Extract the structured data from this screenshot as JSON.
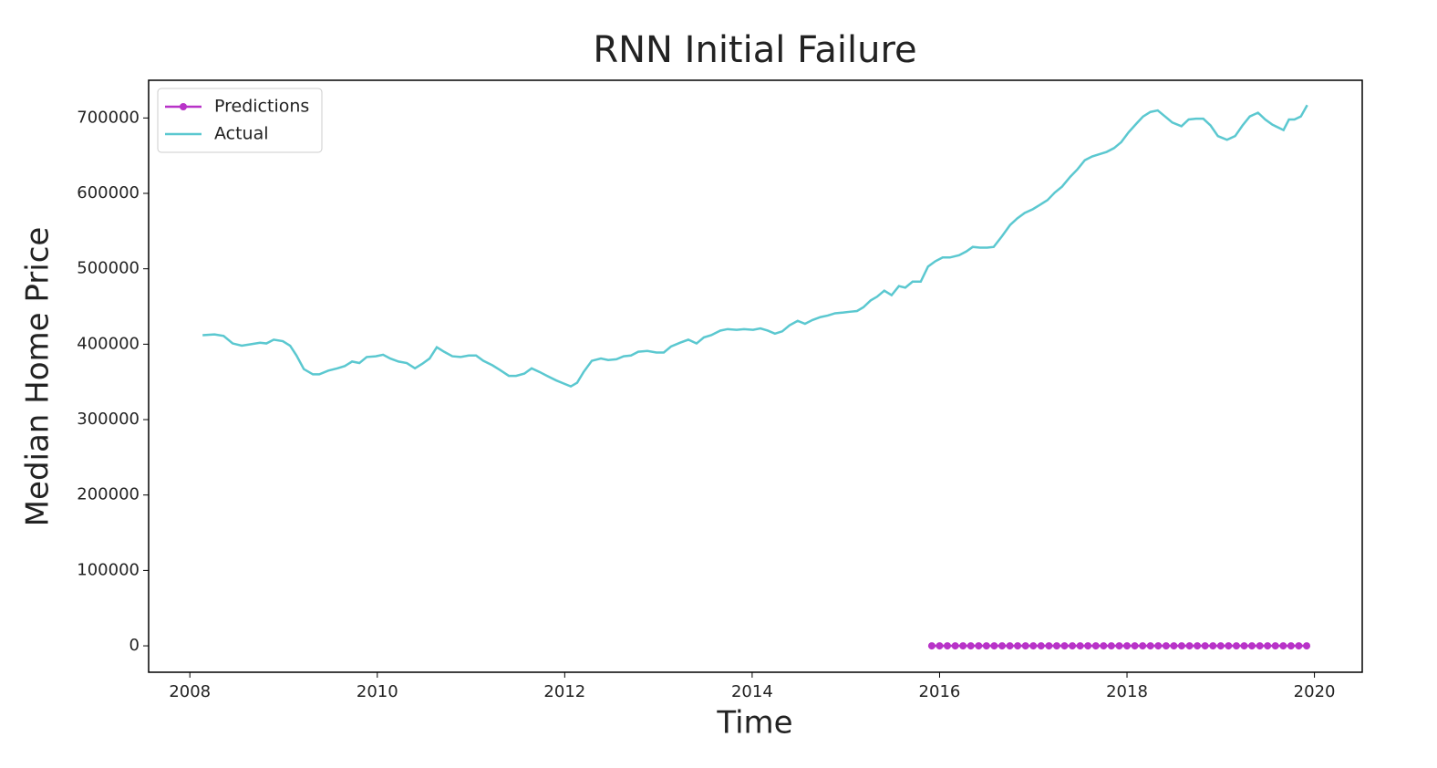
{
  "chart_data": {
    "type": "line",
    "title": "RNN Initial Failure",
    "x_label": "Time",
    "y_label": "Median Home Price",
    "xlim": [
      2007.56,
      2020.51
    ],
    "xticks": [
      2008,
      2010,
      2012,
      2014,
      2016,
      2018,
      2020
    ],
    "ylim": [
      -35000,
      750000
    ],
    "yticks": [
      0,
      100000,
      200000,
      300000,
      400000,
      500000,
      600000,
      700000
    ],
    "grid": false,
    "legend": "upper left",
    "series": [
      {
        "name": "Predictions",
        "color": "#b833c8",
        "marker": true,
        "x": [
          2015.917,
          2016,
          2016.083,
          2016.167,
          2016.25,
          2016.333,
          2016.417,
          2016.5,
          2016.583,
          2016.667,
          2016.75,
          2016.833,
          2016.917,
          2017,
          2017.083,
          2017.167,
          2017.25,
          2017.333,
          2017.417,
          2017.5,
          2017.583,
          2017.667,
          2017.75,
          2017.833,
          2017.917,
          2018,
          2018.083,
          2018.167,
          2018.25,
          2018.333,
          2018.417,
          2018.5,
          2018.583,
          2018.667,
          2018.75,
          2018.833,
          2018.917,
          2019,
          2019.083,
          2019.167,
          2019.25,
          2019.333,
          2019.417,
          2019.5,
          2019.583,
          2019.667,
          2019.75,
          2019.833,
          2019.917
        ],
        "values": [
          0,
          0,
          0,
          0,
          0,
          0,
          0,
          0,
          0,
          0,
          0,
          0,
          0,
          0,
          0,
          0,
          0,
          0,
          0,
          0,
          0,
          0,
          0,
          0,
          0,
          0,
          0,
          0,
          0,
          0,
          0,
          0,
          0,
          0,
          0,
          0,
          0,
          0,
          0,
          0,
          0,
          0,
          0,
          0,
          0,
          0,
          0,
          0,
          0
        ]
      },
      {
        "name": "Actual",
        "color": "#5bc8d0",
        "marker": false,
        "x": [
          2008.136,
          2008.263,
          2008.36,
          2008.457,
          2008.554,
          2008.652,
          2008.749,
          2008.817,
          2008.895,
          2008.992,
          2009.07,
          2009.138,
          2009.216,
          2009.313,
          2009.381,
          2009.478,
          2009.575,
          2009.653,
          2009.731,
          2009.809,
          2009.887,
          2009.984,
          2010.062,
          2010.139,
          2010.227,
          2010.315,
          2010.402,
          2010.48,
          2010.558,
          2010.635,
          2010.713,
          2010.801,
          2010.888,
          2010.976,
          2011.054,
          2011.131,
          2011.229,
          2011.306,
          2011.404,
          2011.481,
          2011.569,
          2011.647,
          2011.734,
          2011.812,
          2011.909,
          2011.987,
          2012.065,
          2012.133,
          2012.201,
          2012.289,
          2012.386,
          2012.464,
          2012.551,
          2012.629,
          2012.707,
          2012.785,
          2012.882,
          2012.979,
          2013.057,
          2013.135,
          2013.232,
          2013.319,
          2013.407,
          2013.485,
          2013.563,
          2013.66,
          2013.738,
          2013.835,
          2013.913,
          2014.01,
          2014.088,
          2014.166,
          2014.243,
          2014.321,
          2014.399,
          2014.486,
          2014.564,
          2014.642,
          2014.73,
          2014.807,
          2014.885,
          2014.973,
          2015.041,
          2015.119,
          2015.187,
          2015.264,
          2015.333,
          2015.41,
          2015.488,
          2015.566,
          2015.634,
          2015.712,
          2015.799,
          2015.877,
          2015.955,
          2016.033,
          2016.11,
          2016.208,
          2016.286,
          2016.354,
          2016.431,
          2016.509,
          2016.577,
          2016.665,
          2016.752,
          2016.83,
          2016.908,
          2016.995,
          2017.073,
          2017.151,
          2017.229,
          2017.307,
          2017.394,
          2017.472,
          2017.55,
          2017.628,
          2017.705,
          2017.783,
          2017.861,
          2017.939,
          2018.017,
          2018.104,
          2018.172,
          2018.25,
          2018.328,
          2018.406,
          2018.483,
          2018.581,
          2018.658,
          2018.736,
          2018.814,
          2018.892,
          2018.97,
          2019.067,
          2019.154,
          2019.232,
          2019.31,
          2019.398,
          2019.475,
          2019.553,
          2019.67,
          2019.728,
          2019.787,
          2019.855,
          2019.923
        ],
        "values": [
          412000,
          413000,
          411000,
          401000,
          398000,
          400000,
          402000,
          401000,
          406000,
          404000,
          398000,
          385000,
          367000,
          360000,
          360000,
          365000,
          368000,
          371000,
          377000,
          375000,
          383000,
          384000,
          386000,
          381000,
          377000,
          375000,
          368000,
          374000,
          381000,
          396000,
          390000,
          384000,
          383000,
          385000,
          385000,
          378000,
          372000,
          366000,
          358000,
          358000,
          361000,
          368000,
          363000,
          358000,
          352000,
          348000,
          344000,
          349000,
          363000,
          378000,
          381000,
          379000,
          380000,
          384000,
          385000,
          390000,
          391000,
          389000,
          389000,
          397000,
          402000,
          406000,
          401000,
          409000,
          412000,
          418000,
          420000,
          419000,
          420000,
          419000,
          421000,
          418000,
          414000,
          417000,
          425000,
          431000,
          427000,
          432000,
          436000,
          438000,
          441000,
          442000,
          443000,
          444000,
          449000,
          458000,
          463000,
          471000,
          465000,
          477000,
          475000,
          483000,
          483000,
          503000,
          510000,
          515000,
          515000,
          518000,
          523000,
          529000,
          528000,
          528000,
          529000,
          543000,
          558000,
          567000,
          574000,
          579000,
          585000,
          591000,
          601000,
          609000,
          622000,
          632000,
          644000,
          649000,
          652000,
          655000,
          660000,
          668000,
          681000,
          693000,
          702000,
          708000,
          710000,
          702000,
          694000,
          689000,
          698000,
          699000,
          699000,
          690000,
          676000,
          671000,
          676000,
          690000,
          702000,
          707000,
          698000,
          691000,
          684000,
          698000,
          698000,
          702000,
          717000
        ]
      }
    ]
  }
}
